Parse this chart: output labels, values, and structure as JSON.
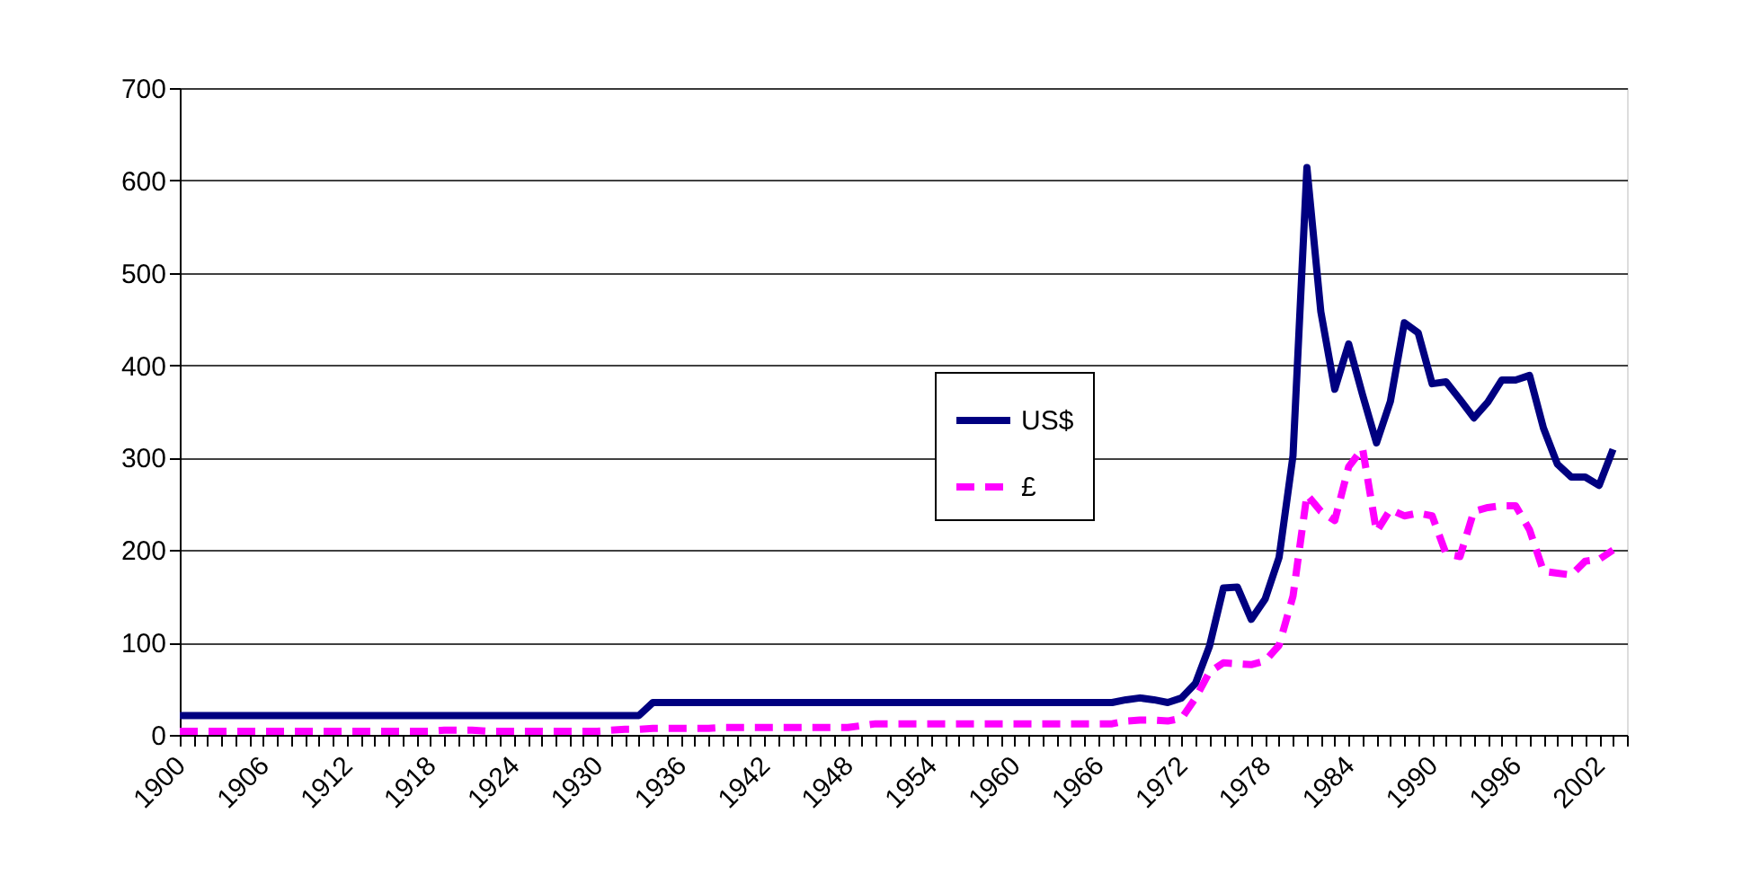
{
  "chart_data": {
    "type": "line",
    "x": [
      1900,
      1901,
      1902,
      1903,
      1904,
      1905,
      1906,
      1907,
      1908,
      1909,
      1910,
      1911,
      1912,
      1913,
      1914,
      1915,
      1916,
      1917,
      1918,
      1919,
      1920,
      1921,
      1922,
      1923,
      1924,
      1925,
      1926,
      1927,
      1928,
      1929,
      1930,
      1931,
      1932,
      1933,
      1934,
      1935,
      1936,
      1937,
      1938,
      1939,
      1940,
      1941,
      1942,
      1943,
      1944,
      1945,
      1946,
      1947,
      1948,
      1949,
      1950,
      1951,
      1952,
      1953,
      1954,
      1955,
      1956,
      1957,
      1958,
      1959,
      1960,
      1961,
      1962,
      1963,
      1964,
      1965,
      1966,
      1967,
      1968,
      1969,
      1970,
      1971,
      1972,
      1973,
      1974,
      1975,
      1976,
      1977,
      1978,
      1979,
      1980,
      1981,
      1982,
      1983,
      1984,
      1985,
      1986,
      1987,
      1988,
      1989,
      1990,
      1991,
      1992,
      1993,
      1994,
      1995,
      1996,
      1997,
      1998,
      1999,
      2000,
      2001,
      2002,
      2003
    ],
    "series": [
      {
        "name": "US$",
        "color": "#000080",
        "line_style": "solid",
        "values": [
          21,
          21,
          21,
          21,
          21,
          21,
          21,
          21,
          21,
          21,
          21,
          21,
          21,
          21,
          21,
          21,
          21,
          21,
          21,
          21,
          21,
          21,
          21,
          21,
          21,
          21,
          21,
          21,
          21,
          21,
          21,
          21,
          21,
          21,
          35,
          35,
          35,
          35,
          35,
          35,
          35,
          35,
          35,
          35,
          35,
          35,
          35,
          35,
          35,
          35,
          35,
          35,
          35,
          35,
          35,
          35,
          35,
          35,
          35,
          35,
          35,
          35,
          35,
          35,
          35,
          35,
          35,
          35,
          38,
          40,
          38,
          35,
          40,
          56,
          96,
          159,
          160,
          125,
          147,
          192,
          302,
          614,
          458,
          374,
          423,
          368,
          316,
          361,
          446,
          435,
          380,
          382,
          363,
          343,
          360,
          384,
          384,
          389,
          332,
          293,
          279,
          279,
          270,
          309
        ]
      },
      {
        "name": "£",
        "color": "#ff00ff",
        "line_style": "dashed",
        "values": [
          4,
          4,
          4,
          4,
          4,
          4,
          4,
          4,
          4,
          4,
          4,
          4,
          4,
          4,
          4,
          4,
          4,
          4,
          4,
          5,
          5,
          5,
          4,
          4,
          4,
          4,
          4,
          4,
          4,
          4,
          4,
          5,
          6,
          6,
          7,
          7,
          7,
          7,
          7,
          8,
          8,
          8,
          8,
          8,
          8,
          8,
          8,
          8,
          8,
          10,
          12,
          12,
          12,
          12,
          12,
          12,
          12,
          12,
          12,
          12,
          12,
          12,
          12,
          12,
          12,
          12,
          12,
          12,
          15,
          16,
          16,
          15,
          18,
          40,
          68,
          78,
          77,
          76,
          80,
          97,
          150,
          260,
          242,
          232,
          290,
          310,
          220,
          244,
          237,
          240,
          237,
          196,
          193,
          242,
          246,
          248,
          248,
          222,
          177,
          175,
          173,
          188,
          190,
          200
        ]
      }
    ],
    "xlim": [
      1900,
      2004
    ],
    "xticks": [
      1900,
      {
        "value": 1901,
        "label": null
      },
      {
        "value": 1902,
        "label": null
      },
      {
        "value": 1903,
        "label": null
      },
      {
        "value": 1904,
        "label": null
      },
      {
        "value": 1905,
        "label": null
      },
      1906,
      {
        "value": 1907,
        "label": null
      },
      {
        "value": 1908,
        "label": null
      },
      {
        "value": 1909,
        "label": null
      },
      {
        "value": 1910,
        "label": null
      },
      {
        "value": 1911,
        "label": null
      },
      1912,
      {
        "value": 1913,
        "label": null
      },
      {
        "value": 1914,
        "label": null
      },
      {
        "value": 1915,
        "label": null
      },
      {
        "value": 1916,
        "label": null
      },
      {
        "value": 1917,
        "label": null
      },
      1918,
      {
        "value": 1919,
        "label": null
      },
      {
        "value": 1920,
        "label": null
      },
      {
        "value": 1921,
        "label": null
      },
      {
        "value": 1922,
        "label": null
      },
      {
        "value": 1923,
        "label": null
      },
      1924,
      {
        "value": 1925,
        "label": null
      },
      {
        "value": 1926,
        "label": null
      },
      {
        "value": 1927,
        "label": null
      },
      {
        "value": 1928,
        "label": null
      },
      {
        "value": 1929,
        "label": null
      },
      1930,
      {
        "value": 1931,
        "label": null
      },
      {
        "value": 1932,
        "label": null
      },
      {
        "value": 1933,
        "label": null
      },
      {
        "value": 1934,
        "label": null
      },
      {
        "value": 1935,
        "label": null
      },
      1936,
      {
        "value": 1937,
        "label": null
      },
      {
        "value": 1938,
        "label": null
      },
      {
        "value": 1939,
        "label": null
      },
      {
        "value": 1940,
        "label": null
      },
      {
        "value": 1941,
        "label": null
      },
      1942,
      {
        "value": 1943,
        "label": null
      },
      {
        "value": 1944,
        "label": null
      },
      {
        "value": 1945,
        "label": null
      },
      {
        "value": 1946,
        "label": null
      },
      {
        "value": 1947,
        "label": null
      },
      1948,
      {
        "value": 1949,
        "label": null
      },
      {
        "value": 1950,
        "label": null
      },
      {
        "value": 1951,
        "label": null
      },
      {
        "value": 1952,
        "label": null
      },
      {
        "value": 1953,
        "label": null
      },
      1954,
      {
        "value": 1955,
        "label": null
      },
      {
        "value": 1956,
        "label": null
      },
      {
        "value": 1957,
        "label": null
      },
      {
        "value": 1958,
        "label": null
      },
      {
        "value": 1959,
        "label": null
      },
      1960,
      {
        "value": 1961,
        "label": null
      },
      {
        "value": 1962,
        "label": null
      },
      {
        "value": 1963,
        "label": null
      },
      {
        "value": 1964,
        "label": null
      },
      {
        "value": 1965,
        "label": null
      },
      1966,
      {
        "value": 1967,
        "label": null
      },
      {
        "value": 1968,
        "label": null
      },
      {
        "value": 1969,
        "label": null
      },
      {
        "value": 1970,
        "label": null
      },
      {
        "value": 1971,
        "label": null
      },
      1972,
      {
        "value": 1973,
        "label": null
      },
      {
        "value": 1974,
        "label": null
      },
      {
        "value": 1975,
        "label": null
      },
      {
        "value": 1976,
        "label": null
      },
      {
        "value": 1977,
        "label": null
      },
      1978,
      {
        "value": 1979,
        "label": null
      },
      {
        "value": 1980,
        "label": null
      },
      {
        "value": 1981,
        "label": null
      },
      {
        "value": 1982,
        "label": null
      },
      {
        "value": 1983,
        "label": null
      },
      1984,
      {
        "value": 1985,
        "label": null
      },
      {
        "value": 1986,
        "label": null
      },
      {
        "value": 1987,
        "label": null
      },
      {
        "value": 1988,
        "label": null
      },
      {
        "value": 1989,
        "label": null
      },
      1990,
      {
        "value": 1991,
        "label": null
      },
      {
        "value": 1992,
        "label": null
      },
      {
        "value": 1993,
        "label": null
      },
      {
        "value": 1994,
        "label": null
      },
      {
        "value": 1995,
        "label": null
      },
      1996,
      {
        "value": 1997,
        "label": null
      },
      {
        "value": 1998,
        "label": null
      },
      {
        "value": 1999,
        "label": null
      },
      {
        "value": 2000,
        "label": null
      },
      {
        "value": 2001,
        "label": null
      },
      2002,
      {
        "value": 2003,
        "label": null
      },
      {
        "value": 2004,
        "label": null
      }
    ],
    "ylim": [
      0,
      700
    ],
    "yticks": [
      0,
      100,
      200,
      300,
      400,
      500,
      600,
      700
    ],
    "grid": "y",
    "legend": "right",
    "marker": "none"
  }
}
